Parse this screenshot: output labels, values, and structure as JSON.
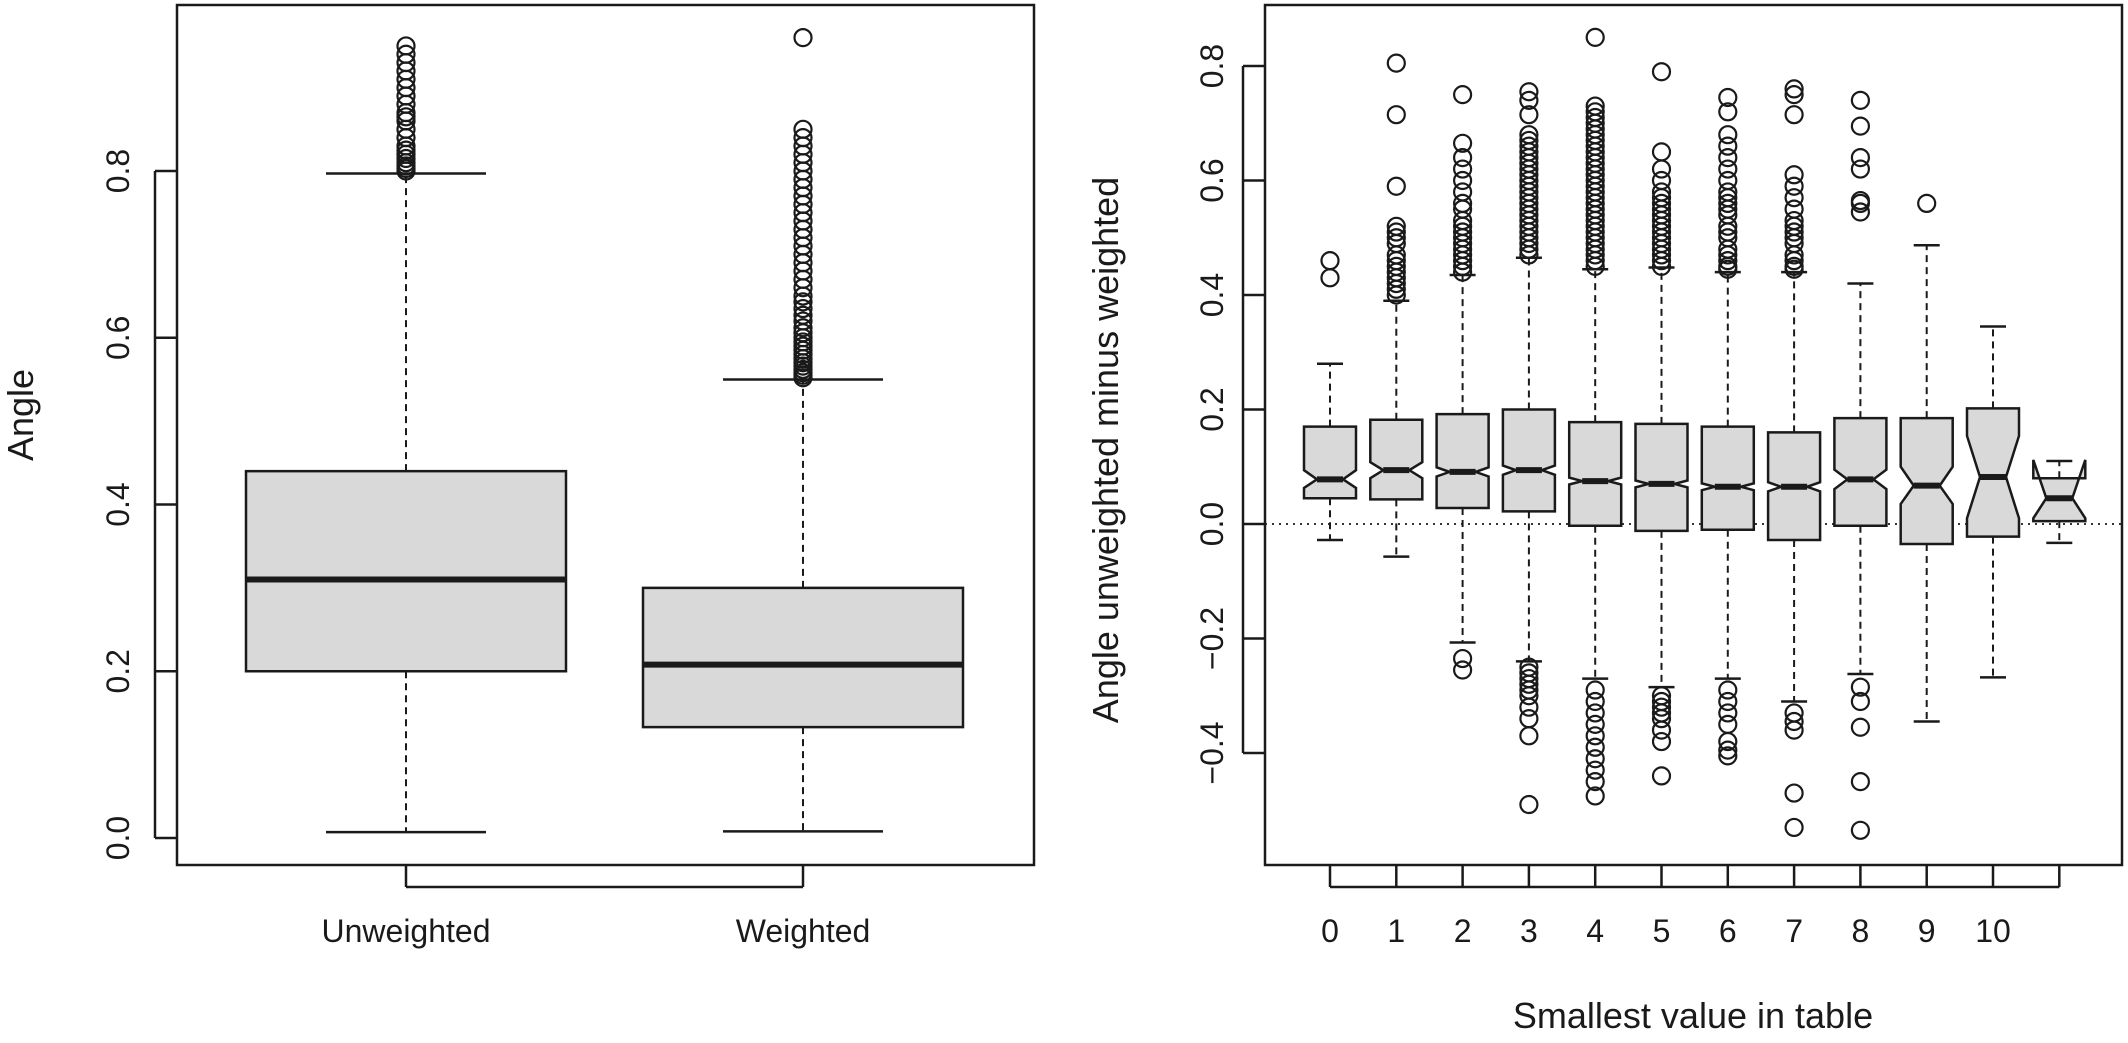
{
  "chart_data": [
    {
      "type": "boxplot",
      "title": "",
      "xlabel": "",
      "ylabel": "Angle",
      "ylim": [
        -0.01,
        1.0
      ],
      "yticks": [
        0.0,
        0.2,
        0.4,
        0.6,
        0.8
      ],
      "ytick_labels": [
        "0.0",
        "0.2",
        "0.4",
        "0.6",
        "0.8"
      ],
      "categories": [
        "Unweighted",
        "Weighted"
      ],
      "notched": false,
      "box_fill": "#d9d9d9",
      "boxes": [
        {
          "name": "Unweighted",
          "whisker_low": 0.007,
          "q1": 0.2,
          "median": 0.31,
          "q3": 0.44,
          "whisker_high": 0.797,
          "outliers": [
            0.8,
            0.803,
            0.806,
            0.81,
            0.815,
            0.82,
            0.825,
            0.83,
            0.84,
            0.85,
            0.86,
            0.865,
            0.87,
            0.88,
            0.89,
            0.9,
            0.91,
            0.92,
            0.93,
            0.94,
            0.95
          ]
        },
        {
          "name": "Weighted",
          "whisker_low": 0.008,
          "q1": 0.133,
          "median": 0.208,
          "q3": 0.3,
          "whisker_high": 0.55,
          "outliers": [
            0.552,
            0.555,
            0.558,
            0.562,
            0.566,
            0.57,
            0.575,
            0.58,
            0.585,
            0.59,
            0.595,
            0.6,
            0.606,
            0.612,
            0.62,
            0.627,
            0.635,
            0.643,
            0.65,
            0.66,
            0.67,
            0.68,
            0.69,
            0.7,
            0.71,
            0.72,
            0.73,
            0.74,
            0.75,
            0.76,
            0.77,
            0.78,
            0.79,
            0.8,
            0.81,
            0.82,
            0.83,
            0.84,
            0.85,
            0.96
          ]
        }
      ]
    },
    {
      "type": "boxplot",
      "title": "",
      "xlabel": "Smallest value in table",
      "ylabel": "Angle unweighted minus weighted",
      "ylim": [
        -0.56,
        0.9
      ],
      "yticks": [
        -0.4,
        -0.2,
        0.0,
        0.2,
        0.4,
        0.6,
        0.8
      ],
      "ytick_labels": [
        "−0.4",
        "−0.2",
        "0.0",
        "0.2",
        "0.4",
        "0.6",
        "0.8"
      ],
      "categories": [
        "0",
        "1",
        "2",
        "3",
        "4",
        "5",
        "6",
        "7",
        "8",
        "9",
        "10",
        ""
      ],
      "notched": true,
      "reference_line": 0.0,
      "box_fill": "#d9d9d9",
      "boxes": [
        {
          "name": "0",
          "whisker_low": -0.028,
          "q1": 0.045,
          "median": 0.078,
          "q3": 0.17,
          "whisker_high": 0.28,
          "notch_low": 0.063,
          "notch_high": 0.094,
          "outliers": [
            0.43,
            0.46
          ]
        },
        {
          "name": "1",
          "whisker_low": -0.057,
          "q1": 0.043,
          "median": 0.094,
          "q3": 0.182,
          "whisker_high": 0.39,
          "notch_low": 0.08,
          "notch_high": 0.108,
          "outliers": [
            0.4,
            0.41,
            0.42,
            0.43,
            0.44,
            0.45,
            0.46,
            0.47,
            0.49,
            0.5,
            0.51,
            0.52,
            0.59,
            0.715,
            0.805
          ]
        },
        {
          "name": "2",
          "whisker_low": -0.207,
          "q1": 0.028,
          "median": 0.091,
          "q3": 0.192,
          "whisker_high": 0.435,
          "notch_low": 0.083,
          "notch_high": 0.099,
          "outliers": [
            0.44,
            0.45,
            0.46,
            0.47,
            0.48,
            0.49,
            0.5,
            0.51,
            0.52,
            0.53,
            0.55,
            0.56,
            0.58,
            0.6,
            0.62,
            0.64,
            0.665,
            0.75,
            -0.235,
            -0.255
          ]
        },
        {
          "name": "3",
          "whisker_low": -0.24,
          "q1": 0.022,
          "median": 0.094,
          "q3": 0.2,
          "whisker_high": 0.465,
          "notch_low": 0.086,
          "notch_high": 0.102,
          "outliers": [
            0.47,
            0.48,
            0.49,
            0.5,
            0.51,
            0.52,
            0.53,
            0.54,
            0.55,
            0.56,
            0.57,
            0.58,
            0.59,
            0.6,
            0.61,
            0.62,
            0.63,
            0.64,
            0.65,
            0.66,
            0.67,
            0.68,
            0.715,
            0.74,
            0.755,
            -0.25,
            -0.26,
            -0.27,
            -0.28,
            -0.29,
            -0.3,
            -0.32,
            -0.34,
            -0.37,
            -0.49
          ]
        },
        {
          "name": "4",
          "whisker_low": -0.27,
          "q1": -0.003,
          "median": 0.075,
          "q3": 0.178,
          "whisker_high": 0.445,
          "notch_low": 0.069,
          "notch_high": 0.081,
          "outliers": [
            0.45,
            0.46,
            0.47,
            0.48,
            0.49,
            0.5,
            0.51,
            0.52,
            0.53,
            0.54,
            0.55,
            0.56,
            0.57,
            0.58,
            0.59,
            0.6,
            0.61,
            0.62,
            0.63,
            0.64,
            0.65,
            0.66,
            0.67,
            0.68,
            0.69,
            0.7,
            0.71,
            0.72,
            0.73,
            0.85,
            -0.29,
            -0.31,
            -0.33,
            -0.35,
            -0.37,
            -0.39,
            -0.41,
            -0.43,
            -0.45,
            -0.475
          ]
        },
        {
          "name": "5",
          "whisker_low": -0.285,
          "q1": -0.012,
          "median": 0.07,
          "q3": 0.175,
          "whisker_high": 0.448,
          "notch_low": 0.064,
          "notch_high": 0.076,
          "outliers": [
            0.45,
            0.46,
            0.47,
            0.48,
            0.49,
            0.5,
            0.51,
            0.52,
            0.53,
            0.54,
            0.55,
            0.56,
            0.57,
            0.58,
            0.6,
            0.62,
            0.65,
            0.79,
            -0.3,
            -0.31,
            -0.32,
            -0.33,
            -0.34,
            -0.36,
            -0.38,
            -0.44
          ]
        },
        {
          "name": "6",
          "whisker_low": -0.27,
          "q1": -0.01,
          "median": 0.065,
          "q3": 0.17,
          "whisker_high": 0.44,
          "notch_low": 0.059,
          "notch_high": 0.071,
          "outliers": [
            0.445,
            0.45,
            0.46,
            0.47,
            0.48,
            0.5,
            0.51,
            0.52,
            0.54,
            0.55,
            0.56,
            0.57,
            0.58,
            0.6,
            0.62,
            0.64,
            0.66,
            0.68,
            0.72,
            0.745,
            -0.29,
            -0.31,
            -0.33,
            -0.35,
            -0.38,
            -0.395,
            -0.405
          ]
        },
        {
          "name": "7",
          "whisker_low": -0.31,
          "q1": -0.028,
          "median": 0.065,
          "q3": 0.16,
          "whisker_high": 0.44,
          "notch_low": 0.057,
          "notch_high": 0.073,
          "outliers": [
            0.445,
            0.45,
            0.46,
            0.47,
            0.49,
            0.5,
            0.51,
            0.52,
            0.53,
            0.55,
            0.57,
            0.59,
            0.61,
            0.715,
            0.75,
            0.76,
            -0.33,
            -0.345,
            -0.36,
            -0.47,
            -0.53
          ]
        },
        {
          "name": "8",
          "whisker_low": -0.262,
          "q1": -0.003,
          "median": 0.078,
          "q3": 0.185,
          "whisker_high": 0.42,
          "notch_low": 0.061,
          "notch_high": 0.095,
          "outliers": [
            0.545,
            0.56,
            0.565,
            0.62,
            0.64,
            0.695,
            0.74,
            -0.285,
            -0.31,
            -0.355,
            -0.45,
            -0.535
          ]
        },
        {
          "name": "9",
          "whisker_low": -0.345,
          "q1": -0.035,
          "median": 0.067,
          "q3": 0.185,
          "whisker_high": 0.487,
          "notch_low": 0.035,
          "notch_high": 0.1,
          "outliers": [
            0.56
          ]
        },
        {
          "name": "10",
          "whisker_low": -0.268,
          "q1": -0.022,
          "median": 0.082,
          "q3": 0.202,
          "whisker_high": 0.345,
          "notch_low": 0.01,
          "notch_high": 0.154,
          "outliers": []
        },
        {
          "name": "",
          "whisker_low": -0.033,
          "q1": 0.005,
          "median": 0.045,
          "q3": 0.08,
          "whisker_high": 0.11,
          "notch_low": 0.01,
          "notch_high": 0.112,
          "outliers": []
        }
      ]
    }
  ]
}
